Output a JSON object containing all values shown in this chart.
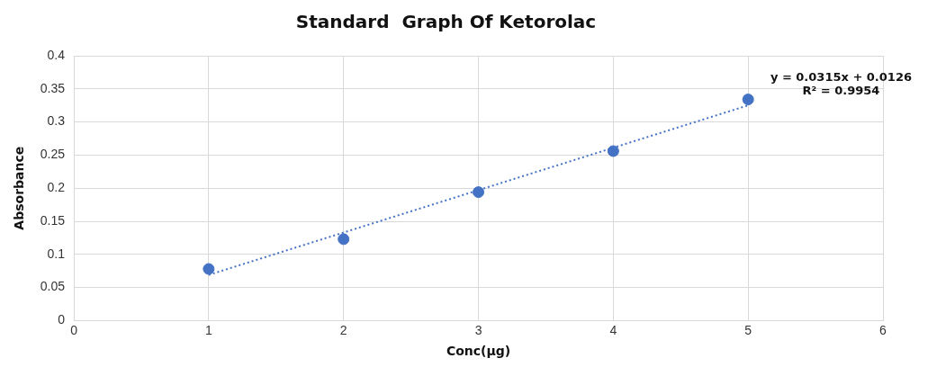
{
  "chart_data": {
    "type": "scatter",
    "title": "Standard  Graph Of Ketorolac",
    "xlabel": "Conc(µg)",
    "ylabel": "Absorbance",
    "x": [
      1,
      2,
      3,
      4,
      5
    ],
    "series": [
      {
        "type": "scatter",
        "color": "#4472c4",
        "values": [
          0.078,
          0.123,
          0.194,
          0.256,
          0.334
        ],
        "marker": "circle"
      },
      {
        "type": "line",
        "color": "#4472c4",
        "x": [
          1,
          5
        ],
        "values": [
          0.069,
          0.325
        ],
        "marker": "none",
        "line_style": "dotted"
      }
    ],
    "xlim": [
      0,
      6
    ],
    "xticks": [
      0,
      1,
      2,
      3,
      4,
      5,
      6
    ],
    "ylim": [
      0,
      0.4
    ],
    "yticks": [
      0,
      0.05,
      0.1,
      0.15,
      0.2,
      0.25,
      0.3,
      0.35,
      0.4
    ],
    "grid": true,
    "legend": false,
    "annotations": [
      "y = 0.0315x + 0.0126",
      "R² = 0.9954"
    ]
  }
}
